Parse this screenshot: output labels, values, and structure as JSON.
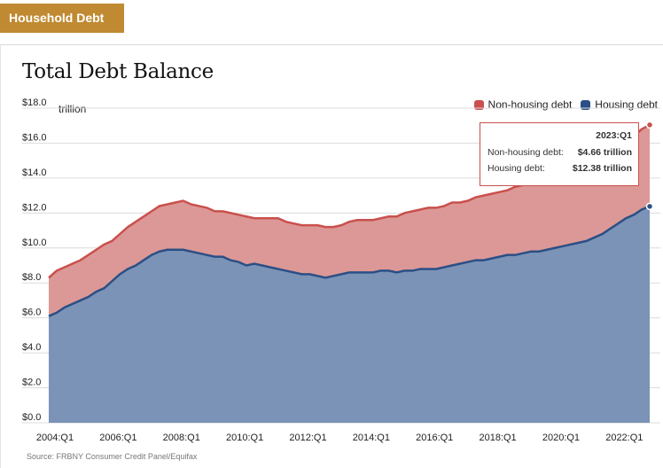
{
  "header": {
    "tab_label": "Household Debt"
  },
  "chart_data": {
    "type": "area",
    "stacked": true,
    "title": "Total Debt Balance",
    "ylabel": "trillion",
    "ylim": [
      0,
      18
    ],
    "y_ticks": [
      "$0.0",
      "$2.0",
      "$4.0",
      "$6.0",
      "$8.0",
      "$10.0",
      "$12.0",
      "$14.0",
      "$16.0",
      "$18.0"
    ],
    "x_ticks": [
      "2004:Q1",
      "2006:Q1",
      "2008:Q1",
      "2010:Q1",
      "2012:Q1",
      "2014:Q1",
      "2016:Q1",
      "2018:Q1",
      "2020:Q1",
      "2022:Q1"
    ],
    "x": [
      "2004:Q1",
      "2004:Q2",
      "2004:Q3",
      "2004:Q4",
      "2005:Q1",
      "2005:Q2",
      "2005:Q3",
      "2005:Q4",
      "2006:Q1",
      "2006:Q2",
      "2006:Q3",
      "2006:Q4",
      "2007:Q1",
      "2007:Q2",
      "2007:Q3",
      "2007:Q4",
      "2008:Q1",
      "2008:Q2",
      "2008:Q3",
      "2008:Q4",
      "2009:Q1",
      "2009:Q2",
      "2009:Q3",
      "2009:Q4",
      "2010:Q1",
      "2010:Q2",
      "2010:Q3",
      "2010:Q4",
      "2011:Q1",
      "2011:Q2",
      "2011:Q3",
      "2011:Q4",
      "2012:Q1",
      "2012:Q2",
      "2012:Q3",
      "2012:Q4",
      "2013:Q1",
      "2013:Q2",
      "2013:Q3",
      "2013:Q4",
      "2014:Q1",
      "2014:Q2",
      "2014:Q3",
      "2014:Q4",
      "2015:Q1",
      "2015:Q2",
      "2015:Q3",
      "2015:Q4",
      "2016:Q1",
      "2016:Q2",
      "2016:Q3",
      "2016:Q4",
      "2017:Q1",
      "2017:Q2",
      "2017:Q3",
      "2017:Q4",
      "2018:Q1",
      "2018:Q2",
      "2018:Q3",
      "2018:Q4",
      "2019:Q1",
      "2019:Q2",
      "2019:Q3",
      "2019:Q4",
      "2020:Q1",
      "2020:Q2",
      "2020:Q3",
      "2020:Q4",
      "2021:Q1",
      "2021:Q2",
      "2021:Q3",
      "2021:Q4",
      "2022:Q1",
      "2022:Q2",
      "2022:Q3",
      "2022:Q4",
      "2023:Q1"
    ],
    "series": [
      {
        "name": "Housing debt",
        "color": "#2b4f86",
        "values": [
          6.1,
          6.3,
          6.6,
          6.8,
          7.0,
          7.2,
          7.5,
          7.7,
          8.1,
          8.5,
          8.8,
          9.0,
          9.3,
          9.6,
          9.8,
          9.9,
          9.9,
          9.9,
          9.8,
          9.7,
          9.6,
          9.5,
          9.5,
          9.3,
          9.2,
          9.0,
          9.1,
          9.0,
          8.9,
          8.8,
          8.7,
          8.6,
          8.5,
          8.5,
          8.4,
          8.3,
          8.4,
          8.5,
          8.6,
          8.6,
          8.6,
          8.6,
          8.7,
          8.7,
          8.6,
          8.7,
          8.7,
          8.8,
          8.8,
          8.8,
          8.9,
          9.0,
          9.1,
          9.2,
          9.3,
          9.3,
          9.4,
          9.5,
          9.6,
          9.6,
          9.7,
          9.8,
          9.8,
          9.9,
          10.0,
          10.1,
          10.2,
          10.3,
          10.4,
          10.6,
          10.8,
          11.1,
          11.4,
          11.7,
          11.9,
          12.2,
          12.38
        ]
      },
      {
        "name": "Non-housing debt",
        "color": "#c9504d",
        "values": [
          2.2,
          2.4,
          2.3,
          2.3,
          2.3,
          2.4,
          2.4,
          2.5,
          2.3,
          2.3,
          2.4,
          2.5,
          2.5,
          2.5,
          2.6,
          2.6,
          2.7,
          2.8,
          2.7,
          2.7,
          2.7,
          2.6,
          2.6,
          2.7,
          2.7,
          2.8,
          2.6,
          2.7,
          2.8,
          2.9,
          2.8,
          2.8,
          2.8,
          2.8,
          2.9,
          2.9,
          2.8,
          2.8,
          2.9,
          3.0,
          3.0,
          3.0,
          3.0,
          3.1,
          3.2,
          3.3,
          3.4,
          3.4,
          3.5,
          3.5,
          3.5,
          3.6,
          3.5,
          3.5,
          3.6,
          3.7,
          3.7,
          3.7,
          3.7,
          3.9,
          3.9,
          3.9,
          4.0,
          4.1,
          4.1,
          4.0,
          4.0,
          4.0,
          4.1,
          4.2,
          4.3,
          4.2,
          4.3,
          4.4,
          4.5,
          4.6,
          4.66
        ]
      }
    ],
    "legend": [
      "Non-housing debt",
      "Housing debt"
    ],
    "legend_position": "top-right",
    "grid": true,
    "tooltip": {
      "period": "2023:Q1",
      "rows": [
        {
          "label": "Non-housing debt:",
          "value": "$4.66 trillion"
        },
        {
          "label": "Housing debt:",
          "value": "$12.38 trillion"
        }
      ]
    }
  },
  "footer": {
    "source": "Source: FRBNY Consumer Credit Panel/Equifax"
  }
}
